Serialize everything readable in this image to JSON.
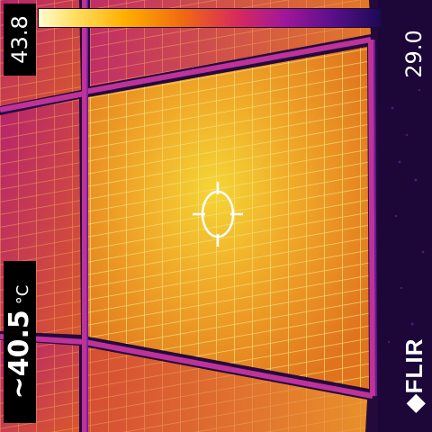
{
  "scale": {
    "max": "43.8",
    "min": "29.0"
  },
  "spot": {
    "value": "~40.5",
    "unit": "°C"
  },
  "brand": "◆FLIR",
  "palette": "iron",
  "colors": {
    "frame": "#c0329c",
    "panel_hot": "#f2d02a",
    "panel_warm": "#ec8a22",
    "background": "#1a0630"
  }
}
